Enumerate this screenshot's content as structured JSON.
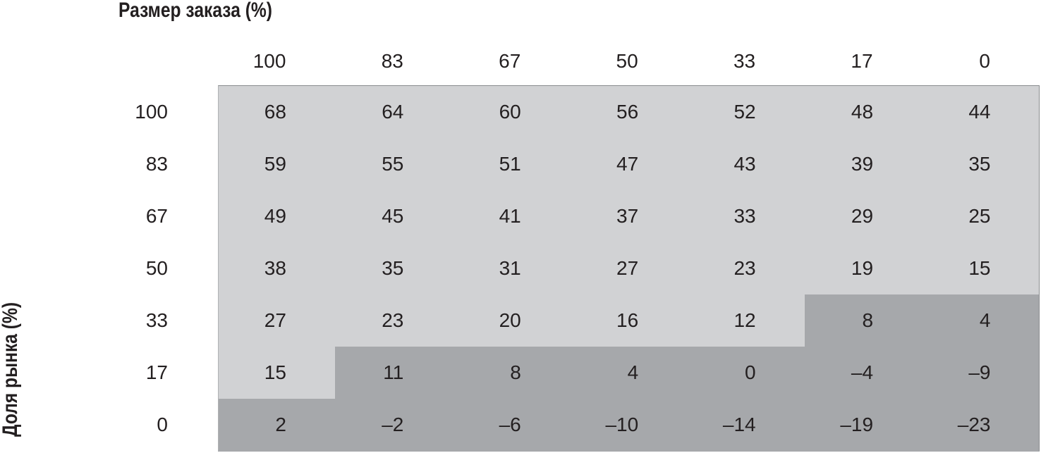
{
  "chart_data": {
    "type": "heatmap",
    "title": "Размер заказа (%)",
    "ylabel": "Доля рынка (%)",
    "columns": [
      "100",
      "83",
      "67",
      "50",
      "33",
      "17",
      "0"
    ],
    "rows": [
      "100",
      "83",
      "67",
      "50",
      "33",
      "17",
      "0"
    ],
    "values": [
      [
        "68",
        "64",
        "60",
        "56",
        "52",
        "48",
        "44"
      ],
      [
        "59",
        "55",
        "51",
        "47",
        "43",
        "39",
        "35"
      ],
      [
        "49",
        "45",
        "41",
        "37",
        "33",
        "29",
        "25"
      ],
      [
        "38",
        "35",
        "31",
        "27",
        "23",
        "19",
        "15"
      ],
      [
        "27",
        "23",
        "20",
        "16",
        "12",
        "8",
        "4"
      ],
      [
        "15",
        "11",
        "8",
        "4",
        "0",
        "–4",
        "–9"
      ],
      [
        "2",
        "–2",
        "–6",
        "–10",
        "–14",
        "–19",
        "–23"
      ]
    ],
    "shading": [
      [
        "light",
        "light",
        "light",
        "light",
        "light",
        "light",
        "light"
      ],
      [
        "light",
        "light",
        "light",
        "light",
        "light",
        "light",
        "light"
      ],
      [
        "light",
        "light",
        "light",
        "light",
        "light",
        "light",
        "light"
      ],
      [
        "light",
        "light",
        "light",
        "light",
        "light",
        "light",
        "light"
      ],
      [
        "light",
        "light",
        "light",
        "light",
        "light",
        "dark",
        "dark"
      ],
      [
        "light",
        "dark",
        "dark",
        "dark",
        "dark",
        "dark",
        "dark"
      ],
      [
        "dark",
        "dark",
        "dark",
        "dark",
        "dark",
        "dark",
        "dark"
      ]
    ],
    "colors": {
      "light": "#d1d2d4",
      "dark": "#a6a8ab",
      "text": "#231f20"
    }
  }
}
